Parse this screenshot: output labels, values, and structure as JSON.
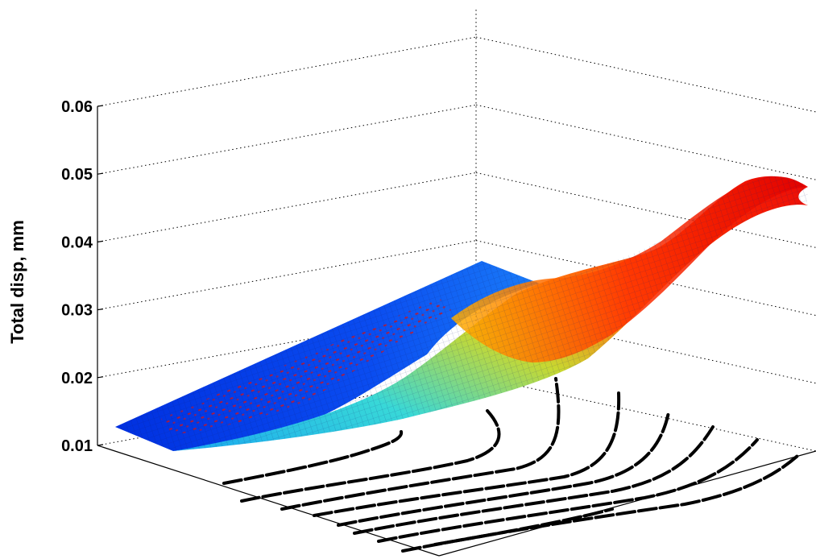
{
  "chart_data": {
    "type": "surface",
    "title": "",
    "zlabel": "Total disp, mm",
    "zlim": [
      0.01,
      0.06
    ],
    "z_ticks": [
      "0.01",
      "0.02",
      "0.03",
      "0.04",
      "0.05",
      "0.06"
    ],
    "grid": true,
    "colormap": "jet",
    "colors": {
      "low": "#0000cc",
      "mid_low": "#00bfff",
      "mid": "#39e6a0",
      "mid_high": "#ffd000",
      "high": "#ff1a00"
    },
    "contour_projection": {
      "style": "black dashed",
      "plane": "floor"
    }
  }
}
